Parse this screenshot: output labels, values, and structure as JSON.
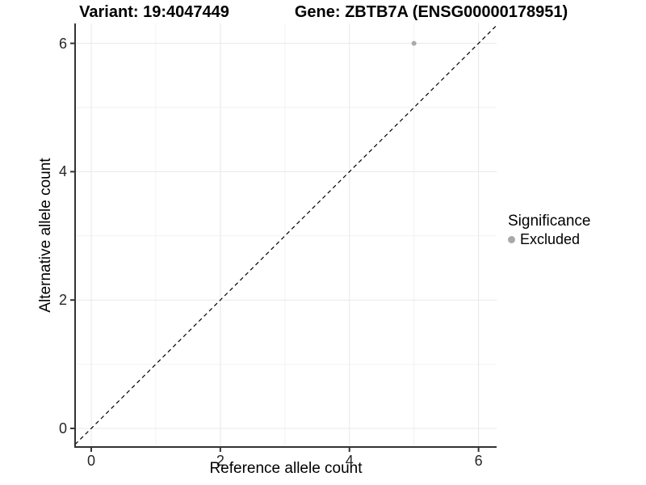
{
  "chart_data": {
    "type": "scatter",
    "title_left": "Variant: 19:4047449",
    "title_right": "Gene: ZBTB7A (ENSG00000178951)",
    "xlabel": "Reference allele count",
    "ylabel": "Alternative allele count",
    "xlim": [
      -0.25,
      6.28
    ],
    "ylim": [
      -0.29,
      6.31
    ],
    "x_major_ticks": [
      0,
      2,
      4,
      6
    ],
    "y_major_ticks": [
      0,
      2,
      4,
      6
    ],
    "x_minor_ticks": [
      1,
      3,
      5
    ],
    "y_minor_ticks": [
      1,
      3,
      5
    ],
    "grid": true,
    "reference_line": {
      "type": "abline",
      "slope": 1,
      "intercept": 0,
      "style": "dashed",
      "color": "#000000"
    },
    "series": [
      {
        "name": "Excluded",
        "color": "#a9a9a9",
        "points": [
          {
            "x": 5,
            "y": 6
          }
        ]
      }
    ],
    "legend": {
      "title": "Significance",
      "position": "right",
      "items": [
        {
          "label": "Excluded",
          "color": "#a9a9a9"
        }
      ]
    },
    "colors": {
      "background": "#ffffff",
      "major_grid": "#e8e8e8",
      "minor_grid": "#f2f2f2",
      "axis_line": "#333333",
      "tick_text": "#262626",
      "point": "#a9a9a9"
    }
  }
}
